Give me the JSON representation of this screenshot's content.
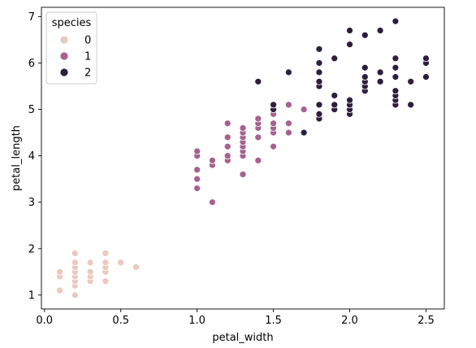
{
  "chart_data": {
    "type": "scatter",
    "xlabel": "petal_width",
    "ylabel": "petal_length",
    "xlim": [
      -0.02,
      2.62
    ],
    "ylim": [
      0.7,
      7.2
    ],
    "xticks": [
      "0.0",
      "0.5",
      "1.0",
      "1.5",
      "2.0",
      "2.5"
    ],
    "yticks": [
      "1",
      "2",
      "3",
      "4",
      "5",
      "6",
      "7"
    ],
    "grid": false,
    "legend": {
      "title": "species",
      "placement": "top-left"
    },
    "series": [
      {
        "name": "0",
        "color": "#ebc9bd",
        "points": [
          [
            0.1,
            1.1
          ],
          [
            0.1,
            1.4
          ],
          [
            0.1,
            1.5
          ],
          [
            0.2,
            1.0
          ],
          [
            0.2,
            1.2
          ],
          [
            0.2,
            1.3
          ],
          [
            0.2,
            1.4
          ],
          [
            0.2,
            1.5
          ],
          [
            0.2,
            1.6
          ],
          [
            0.2,
            1.7
          ],
          [
            0.2,
            1.9
          ],
          [
            0.3,
            1.3
          ],
          [
            0.3,
            1.4
          ],
          [
            0.3,
            1.5
          ],
          [
            0.3,
            1.7
          ],
          [
            0.4,
            1.3
          ],
          [
            0.4,
            1.5
          ],
          [
            0.4,
            1.6
          ],
          [
            0.4,
            1.7
          ],
          [
            0.4,
            1.9
          ],
          [
            0.5,
            1.7
          ],
          [
            0.6,
            1.6
          ]
        ]
      },
      {
        "name": "1",
        "color": "#a7608f",
        "points": [
          [
            1.0,
            3.3
          ],
          [
            1.0,
            3.5
          ],
          [
            1.0,
            3.7
          ],
          [
            1.0,
            4.0
          ],
          [
            1.0,
            4.1
          ],
          [
            1.1,
            3.0
          ],
          [
            1.1,
            3.8
          ],
          [
            1.1,
            3.9
          ],
          [
            1.2,
            3.9
          ],
          [
            1.2,
            4.0
          ],
          [
            1.2,
            4.2
          ],
          [
            1.2,
            4.4
          ],
          [
            1.2,
            4.7
          ],
          [
            1.3,
            3.6
          ],
          [
            1.3,
            4.0
          ],
          [
            1.3,
            4.1
          ],
          [
            1.3,
            4.2
          ],
          [
            1.3,
            4.3
          ],
          [
            1.3,
            4.4
          ],
          [
            1.3,
            4.5
          ],
          [
            1.3,
            4.6
          ],
          [
            1.4,
            3.9
          ],
          [
            1.4,
            4.4
          ],
          [
            1.4,
            4.6
          ],
          [
            1.4,
            4.7
          ],
          [
            1.4,
            4.8
          ],
          [
            1.5,
            4.2
          ],
          [
            1.5,
            4.5
          ],
          [
            1.5,
            4.6
          ],
          [
            1.5,
            4.7
          ],
          [
            1.5,
            4.9
          ],
          [
            1.5,
            5.0
          ],
          [
            1.6,
            4.5
          ],
          [
            1.6,
            4.7
          ],
          [
            1.6,
            5.1
          ],
          [
            1.7,
            5.0
          ],
          [
            1.8,
            4.8
          ]
        ]
      },
      {
        "name": "2",
        "color": "#2d1e3e",
        "points": [
          [
            1.4,
            5.6
          ],
          [
            1.5,
            5.0
          ],
          [
            1.5,
            5.1
          ],
          [
            1.6,
            5.8
          ],
          [
            1.7,
            4.5
          ],
          [
            1.8,
            4.8
          ],
          [
            1.8,
            4.9
          ],
          [
            1.8,
            5.1
          ],
          [
            1.8,
            5.5
          ],
          [
            1.8,
            5.6
          ],
          [
            1.8,
            5.8
          ],
          [
            1.8,
            6.0
          ],
          [
            1.8,
            6.3
          ],
          [
            1.9,
            5.0
          ],
          [
            1.9,
            5.1
          ],
          [
            1.9,
            5.3
          ],
          [
            1.9,
            6.1
          ],
          [
            2.0,
            4.9
          ],
          [
            2.0,
            5.0
          ],
          [
            2.0,
            5.1
          ],
          [
            2.0,
            5.2
          ],
          [
            2.0,
            6.4
          ],
          [
            2.0,
            6.7
          ],
          [
            2.1,
            5.4
          ],
          [
            2.1,
            5.5
          ],
          [
            2.1,
            5.6
          ],
          [
            2.1,
            5.7
          ],
          [
            2.1,
            5.9
          ],
          [
            2.1,
            6.6
          ],
          [
            2.2,
            5.6
          ],
          [
            2.2,
            5.8
          ],
          [
            2.2,
            6.7
          ],
          [
            2.3,
            5.1
          ],
          [
            2.3,
            5.2
          ],
          [
            2.3,
            5.3
          ],
          [
            2.3,
            5.4
          ],
          [
            2.3,
            5.7
          ],
          [
            2.3,
            5.9
          ],
          [
            2.3,
            6.1
          ],
          [
            2.3,
            6.9
          ],
          [
            2.4,
            5.1
          ],
          [
            2.4,
            5.6
          ],
          [
            2.5,
            5.7
          ],
          [
            2.5,
            6.0
          ],
          [
            2.5,
            6.1
          ]
        ]
      }
    ]
  }
}
